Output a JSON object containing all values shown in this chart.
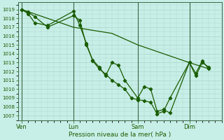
{
  "background_color": "#c8eee8",
  "grid_color": "#a8d8c8",
  "line_color": "#1a5c00",
  "xlabel": "Pression niveau de la mer( hPa )",
  "ylim": [
    1006.5,
    1019.8
  ],
  "yticks": [
    1007,
    1008,
    1009,
    1010,
    1011,
    1012,
    1013,
    1014,
    1015,
    1016,
    1017,
    1018,
    1019
  ],
  "xtick_labels": [
    "Ven",
    "Lun",
    "Sam",
    "Dim"
  ],
  "xtick_positions": [
    0,
    4,
    9,
    13
  ],
  "vline_positions": [
    0,
    4,
    9,
    13
  ],
  "xlim": [
    -0.3,
    15.5
  ],
  "series1_x": [
    0,
    0.5,
    1.0,
    2.0,
    4.0,
    4.5,
    5.0,
    5.5,
    6.0,
    6.5,
    7.0,
    7.5,
    8.0,
    9.0,
    9.5,
    10.0,
    10.5,
    11.0,
    11.5,
    13.0,
    13.5,
    14.0,
    14.5
  ],
  "series1_y": [
    1019.0,
    1018.7,
    1018.2,
    1017.0,
    1018.3,
    1017.8,
    1015.0,
    1013.3,
    1012.5,
    1011.5,
    1013.0,
    1012.7,
    1011.0,
    1009.0,
    1010.3,
    1010.0,
    1007.5,
    1007.7,
    1007.3,
    1013.0,
    1011.5,
    1013.0,
    1012.5
  ],
  "series2_x": [
    0,
    0.5,
    1.0,
    2.0,
    4.0,
    4.5,
    5.0,
    5.5,
    6.0,
    6.5,
    7.0,
    7.5,
    8.0,
    8.5,
    9.0,
    9.5,
    10.0,
    10.5,
    11.0,
    11.5,
    13.0,
    13.5,
    14.0,
    14.5
  ],
  "series2_y": [
    1019.0,
    1018.5,
    1017.5,
    1017.2,
    1018.8,
    1017.2,
    1015.2,
    1013.2,
    1012.3,
    1011.7,
    1011.0,
    1010.5,
    1010.0,
    1009.0,
    1008.8,
    1008.7,
    1008.5,
    1007.2,
    1007.5,
    1009.0,
    1013.0,
    1011.8,
    1013.2,
    1012.3
  ],
  "series3_x": [
    0,
    2,
    4,
    7,
    9,
    11,
    13,
    14.5
  ],
  "series3_y": [
    1019.0,
    1018.0,
    1017.0,
    1016.3,
    1015.0,
    1014.0,
    1013.0,
    1012.3
  ]
}
